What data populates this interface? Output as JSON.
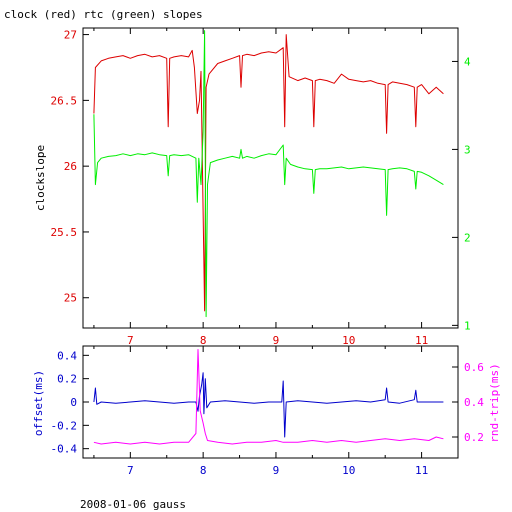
{
  "chart_data": [
    {
      "type": "line",
      "title": "clock (red) rtc (green) slopes",
      "ylabel": "clockslope",
      "xlim": [
        6.35,
        11.5
      ],
      "ylim": [
        24.77,
        27.05
      ],
      "y2lim": [
        0.97,
        4.38
      ],
      "x_ticks": [
        "7",
        "8",
        "9",
        "10",
        "11"
      ],
      "y_ticks": [
        "25",
        "25.5",
        "26",
        "26.5",
        "27"
      ],
      "y2_ticks": [
        "1",
        "2",
        "3",
        "4"
      ],
      "colors": {
        "clock": "#dd0000",
        "rtc": "#00ee00",
        "axes": "#000000"
      },
      "series": [
        {
          "key": "clock",
          "color": "#dd0000",
          "axis": "left",
          "points": [
            [
              6.5,
              26.4
            ],
            [
              6.52,
              26.75
            ],
            [
              6.6,
              26.8
            ],
            [
              6.7,
              26.82
            ],
            [
              6.8,
              26.83
            ],
            [
              6.9,
              26.84
            ],
            [
              7.0,
              26.82
            ],
            [
              7.1,
              26.84
            ],
            [
              7.2,
              26.85
            ],
            [
              7.3,
              26.83
            ],
            [
              7.4,
              26.84
            ],
            [
              7.5,
              26.82
            ],
            [
              7.52,
              26.3
            ],
            [
              7.54,
              26.82
            ],
            [
              7.6,
              26.83
            ],
            [
              7.7,
              26.84
            ],
            [
              7.8,
              26.83
            ],
            [
              7.85,
              26.88
            ],
            [
              7.88,
              26.75
            ],
            [
              7.92,
              26.4
            ],
            [
              7.95,
              26.5
            ],
            [
              7.97,
              26.72
            ],
            [
              8.02,
              24.9
            ],
            [
              8.04,
              26.6
            ],
            [
              8.08,
              26.7
            ],
            [
              8.2,
              26.78
            ],
            [
              8.3,
              26.8
            ],
            [
              8.4,
              26.82
            ],
            [
              8.5,
              26.84
            ],
            [
              8.52,
              26.6
            ],
            [
              8.54,
              26.84
            ],
            [
              8.6,
              26.85
            ],
            [
              8.7,
              26.84
            ],
            [
              8.8,
              26.86
            ],
            [
              8.9,
              26.87
            ],
            [
              9.0,
              26.86
            ],
            [
              9.1,
              26.9
            ],
            [
              9.12,
              26.3
            ],
            [
              9.14,
              27.0
            ],
            [
              9.18,
              26.68
            ],
            [
              9.3,
              26.65
            ],
            [
              9.4,
              26.67
            ],
            [
              9.5,
              26.65
            ],
            [
              9.52,
              26.3
            ],
            [
              9.54,
              26.65
            ],
            [
              9.6,
              26.66
            ],
            [
              9.7,
              26.65
            ],
            [
              9.8,
              26.63
            ],
            [
              9.9,
              26.7
            ],
            [
              10.0,
              26.66
            ],
            [
              10.1,
              26.65
            ],
            [
              10.2,
              26.64
            ],
            [
              10.3,
              26.65
            ],
            [
              10.4,
              26.63
            ],
            [
              10.5,
              26.62
            ],
            [
              10.52,
              26.25
            ],
            [
              10.54,
              26.62
            ],
            [
              10.6,
              26.64
            ],
            [
              10.7,
              26.63
            ],
            [
              10.8,
              26.62
            ],
            [
              10.9,
              26.6
            ],
            [
              10.92,
              26.3
            ],
            [
              10.94,
              26.6
            ],
            [
              11.0,
              26.62
            ],
            [
              11.1,
              26.55
            ],
            [
              11.2,
              26.6
            ],
            [
              11.3,
              26.55
            ]
          ]
        },
        {
          "key": "rtc",
          "color": "#00ee00",
          "axis": "right",
          "points": [
            [
              6.5,
              3.4
            ],
            [
              6.52,
              2.6
            ],
            [
              6.55,
              2.85
            ],
            [
              6.6,
              2.9
            ],
            [
              6.7,
              2.92
            ],
            [
              6.8,
              2.93
            ],
            [
              6.9,
              2.95
            ],
            [
              7.0,
              2.93
            ],
            [
              7.1,
              2.95
            ],
            [
              7.2,
              2.94
            ],
            [
              7.3,
              2.96
            ],
            [
              7.4,
              2.94
            ],
            [
              7.5,
              2.93
            ],
            [
              7.52,
              2.7
            ],
            [
              7.54,
              2.93
            ],
            [
              7.6,
              2.94
            ],
            [
              7.7,
              2.93
            ],
            [
              7.8,
              2.94
            ],
            [
              7.9,
              2.9
            ],
            [
              7.92,
              2.4
            ],
            [
              7.94,
              2.9
            ],
            [
              7.97,
              2.6
            ],
            [
              8.0,
              3.2
            ],
            [
              8.02,
              4.35
            ],
            [
              8.04,
              1.1
            ],
            [
              8.06,
              2.6
            ],
            [
              8.1,
              2.85
            ],
            [
              8.2,
              2.88
            ],
            [
              8.3,
              2.9
            ],
            [
              8.4,
              2.92
            ],
            [
              8.5,
              2.9
            ],
            [
              8.52,
              3.0
            ],
            [
              8.54,
              2.9
            ],
            [
              8.6,
              2.92
            ],
            [
              8.7,
              2.9
            ],
            [
              8.8,
              2.93
            ],
            [
              8.9,
              2.95
            ],
            [
              9.0,
              2.94
            ],
            [
              9.1,
              3.05
            ],
            [
              9.12,
              2.6
            ],
            [
              9.14,
              2.9
            ],
            [
              9.2,
              2.83
            ],
            [
              9.3,
              2.8
            ],
            [
              9.4,
              2.78
            ],
            [
              9.5,
              2.77
            ],
            [
              9.52,
              2.5
            ],
            [
              9.54,
              2.77
            ],
            [
              9.6,
              2.78
            ],
            [
              9.7,
              2.78
            ],
            [
              9.8,
              2.79
            ],
            [
              9.9,
              2.8
            ],
            [
              10.0,
              2.78
            ],
            [
              10.1,
              2.79
            ],
            [
              10.2,
              2.8
            ],
            [
              10.3,
              2.79
            ],
            [
              10.4,
              2.78
            ],
            [
              10.5,
              2.77
            ],
            [
              10.52,
              2.25
            ],
            [
              10.54,
              2.77
            ],
            [
              10.6,
              2.78
            ],
            [
              10.7,
              2.79
            ],
            [
              10.8,
              2.78
            ],
            [
              10.9,
              2.75
            ],
            [
              10.92,
              2.55
            ],
            [
              10.94,
              2.75
            ],
            [
              11.0,
              2.74
            ],
            [
              11.1,
              2.7
            ],
            [
              11.2,
              2.65
            ],
            [
              11.3,
              2.6
            ]
          ]
        }
      ]
    },
    {
      "type": "line",
      "ylabel": "offset(ms)",
      "y2label": "rnd-trip(ms)",
      "xlabel": "2008-01-06 gauss",
      "xlim": [
        6.35,
        11.5
      ],
      "ylim": [
        -0.48,
        0.48
      ],
      "y2lim": [
        0.08,
        0.72
      ],
      "x_ticks": [
        "7",
        "8",
        "9",
        "10",
        "11"
      ],
      "y_ticks": [
        "-0.4",
        "-0.2",
        "0",
        "0.2",
        "0.4"
      ],
      "y2_ticks": [
        "0.2",
        "0.4",
        "0.6"
      ],
      "colors": {
        "offset": "#0000cc",
        "rndtrip": "#ff00ff",
        "axes": "#000000"
      },
      "series": [
        {
          "key": "offset",
          "color": "#0000cc",
          "axis": "left",
          "points": [
            [
              6.5,
              0.0
            ],
            [
              6.52,
              0.12
            ],
            [
              6.54,
              -0.02
            ],
            [
              6.6,
              0.0
            ],
            [
              6.8,
              -0.01
            ],
            [
              7.0,
              0.0
            ],
            [
              7.2,
              0.01
            ],
            [
              7.4,
              0.0
            ],
            [
              7.6,
              -0.01
            ],
            [
              7.8,
              0.0
            ],
            [
              7.9,
              0.0
            ],
            [
              7.93,
              -0.08
            ],
            [
              7.95,
              0.05
            ],
            [
              7.98,
              0.15
            ],
            [
              8.0,
              0.25
            ],
            [
              8.01,
              -0.1
            ],
            [
              8.03,
              0.2
            ],
            [
              8.05,
              -0.05
            ],
            [
              8.1,
              0.0
            ],
            [
              8.3,
              0.01
            ],
            [
              8.5,
              0.0
            ],
            [
              8.7,
              -0.01
            ],
            [
              8.9,
              0.0
            ],
            [
              9.08,
              0.0
            ],
            [
              9.1,
              0.18
            ],
            [
              9.12,
              -0.3
            ],
            [
              9.14,
              0.0
            ],
            [
              9.3,
              0.01
            ],
            [
              9.5,
              0.0
            ],
            [
              9.7,
              -0.01
            ],
            [
              9.9,
              0.0
            ],
            [
              10.1,
              0.01
            ],
            [
              10.3,
              0.0
            ],
            [
              10.5,
              0.02
            ],
            [
              10.52,
              0.12
            ],
            [
              10.54,
              0.0
            ],
            [
              10.7,
              -0.01
            ],
            [
              10.9,
              0.02
            ],
            [
              10.92,
              0.1
            ],
            [
              10.94,
              0.0
            ],
            [
              11.1,
              0.0
            ],
            [
              11.3,
              0.0
            ]
          ]
        },
        {
          "key": "rndtrip",
          "color": "#ff00ff",
          "axis": "right",
          "points": [
            [
              6.5,
              0.17
            ],
            [
              6.6,
              0.16
            ],
            [
              6.8,
              0.17
            ],
            [
              7.0,
              0.16
            ],
            [
              7.2,
              0.17
            ],
            [
              7.4,
              0.16
            ],
            [
              7.6,
              0.17
            ],
            [
              7.8,
              0.17
            ],
            [
              7.9,
              0.22
            ],
            [
              7.93,
              0.7
            ],
            [
              7.96,
              0.35
            ],
            [
              8.0,
              0.28
            ],
            [
              8.03,
              0.22
            ],
            [
              8.06,
              0.18
            ],
            [
              8.2,
              0.17
            ],
            [
              8.4,
              0.16
            ],
            [
              8.6,
              0.17
            ],
            [
              8.8,
              0.17
            ],
            [
              9.0,
              0.18
            ],
            [
              9.1,
              0.17
            ],
            [
              9.3,
              0.17
            ],
            [
              9.5,
              0.18
            ],
            [
              9.7,
              0.17
            ],
            [
              9.9,
              0.18
            ],
            [
              10.1,
              0.17
            ],
            [
              10.3,
              0.18
            ],
            [
              10.5,
              0.19
            ],
            [
              10.7,
              0.18
            ],
            [
              10.9,
              0.19
            ],
            [
              11.1,
              0.18
            ],
            [
              11.2,
              0.2
            ],
            [
              11.3,
              0.19
            ]
          ]
        }
      ]
    }
  ]
}
